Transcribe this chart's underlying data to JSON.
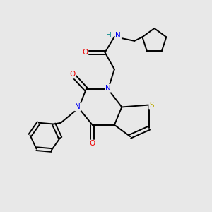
{
  "bg_color": "#e8e8e8",
  "atom_colors": {
    "C": "#000000",
    "N": "#0000ee",
    "O": "#ee0000",
    "S": "#bbaa00",
    "H": "#008888"
  },
  "bond_color": "#000000",
  "bond_lw": 1.4,
  "fig_size": [
    3.0,
    3.0
  ],
  "dpi": 100
}
